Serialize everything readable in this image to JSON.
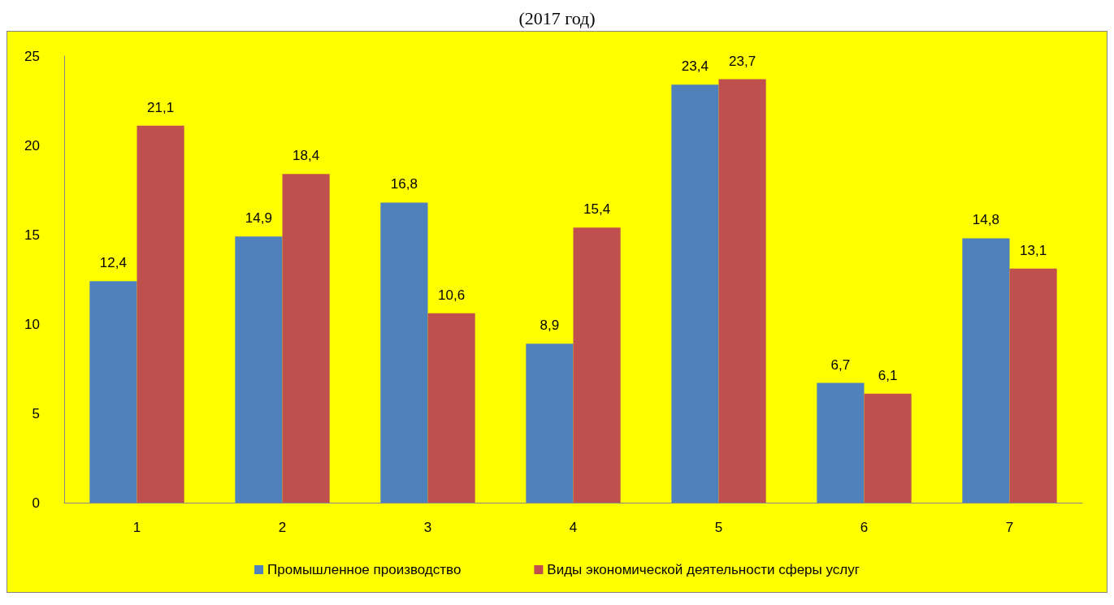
{
  "chart_data": {
    "type": "bar",
    "title": "(2017 год)",
    "categories": [
      "1",
      "2",
      "3",
      "4",
      "5",
      "6",
      "7"
    ],
    "series": [
      {
        "name": "Промышленное производство",
        "color": "#4f81bd",
        "values": [
          12.4,
          14.9,
          16.8,
          8.9,
          23.4,
          6.7,
          14.8
        ],
        "value_labels": [
          "12,4",
          "14,9",
          "16,8",
          "8,9",
          "23,4",
          "6,7",
          "14,8"
        ]
      },
      {
        "name": "Виды экономической деятельности сферы услуг",
        "color": "#c0504d",
        "values": [
          21.1,
          18.4,
          10.6,
          15.4,
          23.7,
          6.1,
          13.1
        ],
        "value_labels": [
          "21,1",
          "18,4",
          "10,6",
          "15,4",
          "23,7",
          "6,1",
          "13,1"
        ]
      }
    ],
    "ylim": [
      0,
      25
    ],
    "yticks": [
      0,
      5,
      10,
      15,
      20,
      25
    ],
    "grid": false,
    "legend": "bottom"
  }
}
